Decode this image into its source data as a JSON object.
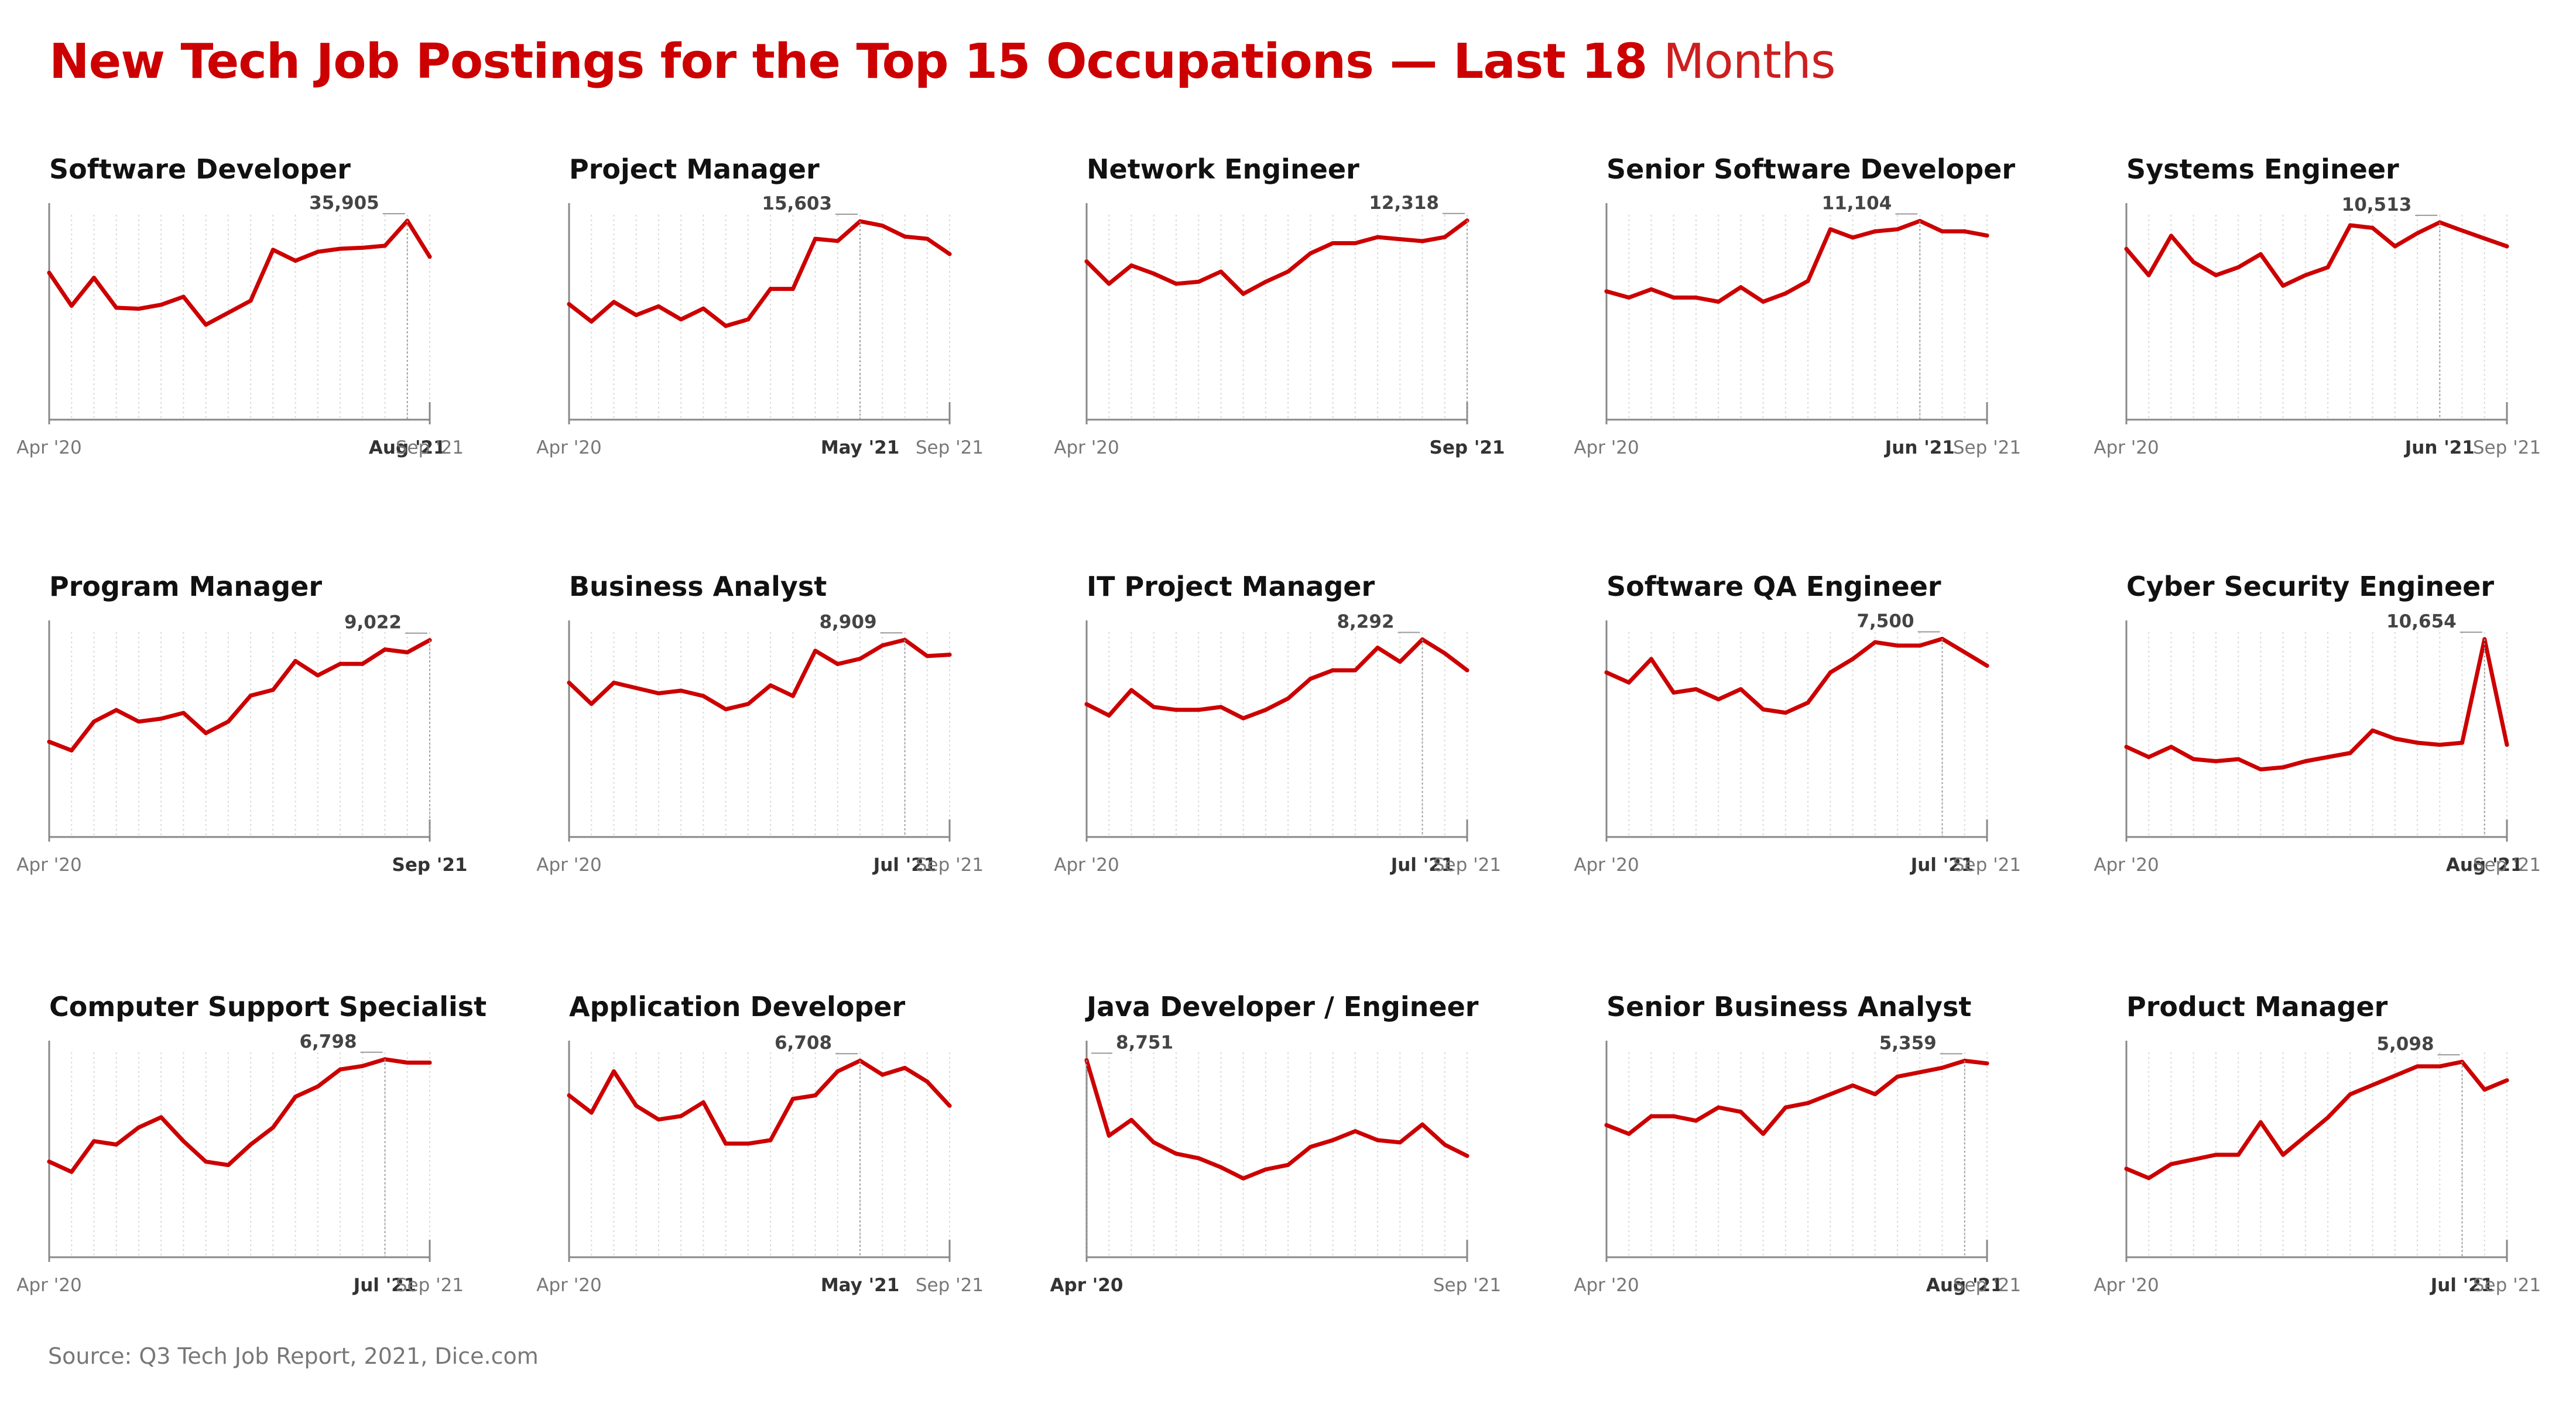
{
  "title": "New Tech Job Postings for the Top 15 Occupations — Last 18",
  "title_accent": "Months",
  "source": "Source: Q3 Tech Job Report, 2021, Dice.com",
  "colors": {
    "line": "#cc0000",
    "title": "#cc0000",
    "axis": "#888888",
    "grid": "#d9d9d9",
    "text": "#111111",
    "muted": "#777777"
  },
  "chart_data": [
    {
      "type": "line",
      "title": "Software Developer",
      "x": [
        "Apr '20",
        "May '20",
        "Jun '20",
        "Jul '20",
        "Aug '20",
        "Sep '20",
        "Oct '20",
        "Nov '20",
        "Dec '20",
        "Jan '21",
        "Feb '21",
        "Mar '21",
        "Apr '21",
        "May '21",
        "Jun '21",
        "Jul '21",
        "Aug '21",
        "Sep '21"
      ],
      "values": [
        30700,
        27400,
        30200,
        27200,
        27100,
        27500,
        28300,
        25500,
        26700,
        27900,
        33000,
        31900,
        32800,
        33100,
        33200,
        33400,
        35905,
        32300
      ],
      "ylim": [
        16000,
        36500
      ],
      "peak_label": "35,905",
      "peak_index": 16,
      "tick_labels": [
        "Apr '20",
        "Aug '21",
        "Sep '21"
      ]
    },
    {
      "type": "line",
      "title": "Project Manager",
      "x": [
        "Apr '20",
        "May '20",
        "Jun '20",
        "Jul '20",
        "Aug '20",
        "Sep '20",
        "Oct '20",
        "Nov '20",
        "Dec '20",
        "Jan '21",
        "Feb '21",
        "Mar '21",
        "Apr '21",
        "May '21",
        "Jun '21",
        "Jul '21",
        "Aug '21",
        "Sep '21"
      ],
      "values": [
        11800,
        11000,
        11900,
        11300,
        11700,
        11100,
        11600,
        10800,
        11100,
        12500,
        12500,
        14800,
        14700,
        15603,
        15400,
        14900,
        14800,
        14100
      ],
      "ylim": [
        6500,
        15900
      ],
      "peak_label": "15,603",
      "peak_index": 13,
      "tick_labels": [
        "Apr '20",
        "May '21",
        "Sep '21"
      ]
    },
    {
      "type": "line",
      "title": "Network Engineer",
      "x": [
        "Apr '20",
        "May '20",
        "Jun '20",
        "Jul '20",
        "Aug '20",
        "Sep '20",
        "Oct '20",
        "Nov '20",
        "Dec '20",
        "Jan '21",
        "Feb '21",
        "Mar '21",
        "Apr '21",
        "May '21",
        "Jun '21",
        "Jul '21",
        "Aug '21",
        "Sep '21"
      ],
      "values": [
        10300,
        9200,
        10100,
        9700,
        9200,
        9300,
        9800,
        8700,
        9300,
        9800,
        10700,
        11200,
        11200,
        11500,
        11400,
        11300,
        11500,
        12318
      ],
      "ylim": [
        2500,
        12600
      ],
      "peak_label": "12,318",
      "peak_index": 17,
      "tick_labels": [
        "Apr '20",
        "Sep '21"
      ]
    },
    {
      "type": "line",
      "title": "Senior Software Developer",
      "x": [
        "Apr '20",
        "May '20",
        "Jun '20",
        "Jul '20",
        "Aug '20",
        "Sep '20",
        "Oct '20",
        "Nov '20",
        "Dec '20",
        "Jan '21",
        "Feb '21",
        "Mar '21",
        "Apr '21",
        "May '21",
        "Jun '21",
        "Jul '21",
        "Aug '21",
        "Sep '21"
      ],
      "values": [
        7700,
        7400,
        7800,
        7400,
        7400,
        7200,
        7900,
        7200,
        7600,
        8200,
        10700,
        10300,
        10600,
        10700,
        11104,
        10600,
        10600,
        10400
      ],
      "ylim": [
        1500,
        11400
      ],
      "peak_label": "11,104",
      "peak_index": 14,
      "tick_labels": [
        "Apr '20",
        "Jun '21",
        "Sep '21"
      ]
    },
    {
      "type": "line",
      "title": "Systems Engineer",
      "x": [
        "Apr '20",
        "May '20",
        "Jun '20",
        "Jul '20",
        "Aug '20",
        "Sep '20",
        "Oct '20",
        "Nov '20",
        "Dec '20",
        "Jan '21",
        "Feb '21",
        "Mar '21",
        "Apr '21",
        "May '21",
        "Jun '21",
        "Jul '21",
        "Aug '21",
        "Sep '21"
      ],
      "values": [
        9500,
        8500,
        10000,
        9000,
        8500,
        8800,
        9300,
        8100,
        8500,
        8800,
        10400,
        10300,
        9600,
        10100,
        10513,
        10200,
        9900,
        9600
      ],
      "ylim": [
        3000,
        10800
      ],
      "peak_label": "10,513",
      "peak_index": 14,
      "tick_labels": [
        "Apr '20",
        "Jun '21",
        "Sep '21"
      ]
    },
    {
      "type": "line",
      "title": "Program Manager",
      "x": [
        "Apr '20",
        "May '20",
        "Jun '20",
        "Jul '20",
        "Aug '20",
        "Sep '20",
        "Oct '20",
        "Nov '20",
        "Dec '20",
        "Jan '21",
        "Feb '21",
        "Mar '21",
        "Apr '21",
        "May '21",
        "Jun '21",
        "Jul '21",
        "Aug '21",
        "Sep '21"
      ],
      "values": [
        5500,
        5200,
        6200,
        6600,
        6200,
        6300,
        6500,
        5800,
        6200,
        7100,
        7300,
        8300,
        7800,
        8200,
        8200,
        8700,
        8600,
        9022
      ],
      "ylim": [
        2200,
        9300
      ],
      "peak_label": "9,022",
      "peak_index": 17,
      "tick_labels": [
        "Apr '20",
        "Sep '21"
      ]
    },
    {
      "type": "line",
      "title": "Business Analyst",
      "x": [
        "Apr '20",
        "May '20",
        "Jun '20",
        "Jul '20",
        "Aug '20",
        "Sep '20",
        "Oct '20",
        "Nov '20",
        "Dec '20",
        "Jan '21",
        "Feb '21",
        "Mar '21",
        "Apr '21",
        "May '21",
        "Jun '21",
        "Jul '21",
        "Aug '21",
        "Sep '21"
      ],
      "values": [
        7300,
        6500,
        7300,
        7100,
        6900,
        7000,
        6800,
        6300,
        6500,
        7200,
        6800,
        8500,
        8000,
        8200,
        8700,
        8909,
        8300,
        8350
      ],
      "ylim": [
        1500,
        9200
      ],
      "peak_label": "8,909",
      "peak_index": 15,
      "tick_labels": [
        "Apr '20",
        "Jul '21",
        "Sep '21"
      ]
    },
    {
      "type": "line",
      "title": "IT Project Manager",
      "x": [
        "Apr '20",
        "May '20",
        "Jun '20",
        "Jul '20",
        "Aug '20",
        "Sep '20",
        "Oct '20",
        "Nov '20",
        "Dec '20",
        "Jan '21",
        "Feb '21",
        "Mar '21",
        "Apr '21",
        "May '21",
        "Jun '21",
        "Jul '21",
        "Aug '21",
        "Sep '21"
      ],
      "values": [
        6000,
        5600,
        6500,
        5900,
        5800,
        5800,
        5900,
        5500,
        5800,
        6200,
        6900,
        7200,
        7200,
        8000,
        7500,
        8292,
        7800,
        7200
      ],
      "ylim": [
        1300,
        8550
      ],
      "peak_label": "8,292",
      "peak_index": 15,
      "tick_labels": [
        "Apr '20",
        "Jul '21",
        "Sep '21"
      ]
    },
    {
      "type": "line",
      "title": "Software QA Engineer",
      "x": [
        "Apr '20",
        "May '20",
        "Jun '20",
        "Jul '20",
        "Aug '20",
        "Sep '20",
        "Oct '20",
        "Nov '20",
        "Dec '20",
        "Jan '21",
        "Feb '21",
        "Mar '21",
        "Apr '21",
        "May '21",
        "Jun '21",
        "Jul '21",
        "Aug '21",
        "Sep '21"
      ],
      "values": [
        6500,
        6200,
        6900,
        5900,
        6000,
        5700,
        6000,
        5400,
        5300,
        5600,
        6500,
        6900,
        7400,
        7300,
        7300,
        7500,
        7100,
        6700
      ],
      "ylim": [
        1600,
        7700
      ],
      "peak_label": "7,500",
      "peak_index": 15,
      "tick_labels": [
        "Apr '20",
        "Jul '21",
        "Sep '21"
      ]
    },
    {
      "type": "line",
      "title": "Cyber Security Engineer",
      "x": [
        "Apr '20",
        "May '20",
        "Jun '20",
        "Jul '20",
        "Aug '20",
        "Sep '20",
        "Oct '20",
        "Nov '20",
        "Dec '20",
        "Jan '21",
        "Feb '21",
        "Mar '21",
        "Apr '21",
        "May '21",
        "Jun '21",
        "Jul '21",
        "Aug '21",
        "Sep '21"
      ],
      "values": [
        5400,
        4900,
        5400,
        4800,
        4700,
        4800,
        4300,
        4400,
        4700,
        4900,
        5100,
        6200,
        5800,
        5600,
        5500,
        5600,
        10654,
        5500
      ],
      "ylim": [
        1000,
        11000
      ],
      "peak_label": "10,654",
      "peak_index": 16,
      "tick_labels": [
        "Apr '20",
        "Aug '21",
        "Sep '21"
      ]
    },
    {
      "type": "line",
      "title": "Computer Support Specialist",
      "x": [
        "Apr '20",
        "May '20",
        "Jun '20",
        "Jul '20",
        "Aug '20",
        "Sep '20",
        "Oct '20",
        "Nov '20",
        "Dec '20",
        "Jan '21",
        "Feb '21",
        "Mar '21",
        "Apr '21",
        "May '21",
        "Jun '21",
        "Jul '21",
        "Aug '21",
        "Sep '21"
      ],
      "values": [
        3800,
        3500,
        4400,
        4300,
        4800,
        5100,
        4400,
        3800,
        3700,
        4300,
        4800,
        5700,
        6000,
        6500,
        6600,
        6798,
        6700,
        6700
      ],
      "ylim": [
        1000,
        7000
      ],
      "peak_label": "6,798",
      "peak_index": 15,
      "tick_labels": [
        "Apr '20",
        "Jul '21",
        "Sep '21"
      ]
    },
    {
      "type": "line",
      "title": "Application Developer",
      "x": [
        "Apr '20",
        "May '20",
        "Jun '20",
        "Jul '20",
        "Aug '20",
        "Sep '20",
        "Oct '20",
        "Nov '20",
        "Dec '20",
        "Jan '21",
        "Feb '21",
        "Mar '21",
        "Apr '21",
        "May '21",
        "Jun '21",
        "Jul '21",
        "Aug '21",
        "Sep '21"
      ],
      "values": [
        5700,
        5200,
        6400,
        5400,
        5000,
        5100,
        5500,
        4300,
        4300,
        4400,
        5600,
        5700,
        6400,
        6708,
        6300,
        6500,
        6100,
        5400
      ],
      "ylim": [
        1000,
        6950
      ],
      "peak_label": "6,708",
      "peak_index": 13,
      "tick_labels": [
        "Apr '20",
        "May '21",
        "Sep '21"
      ]
    },
    {
      "type": "line",
      "title": "Java Developer / Engineer",
      "x": [
        "Apr '20",
        "May '20",
        "Jun '20",
        "Jul '20",
        "Aug '20",
        "Sep '20",
        "Oct '20",
        "Nov '20",
        "Dec '20",
        "Jan '21",
        "Feb '21",
        "Mar '21",
        "Apr '21",
        "May '21",
        "Jun '21",
        "Jul '21",
        "Aug '21",
        "Sep '21"
      ],
      "values": [
        8751,
        5400,
        6100,
        5100,
        4600,
        4400,
        4000,
        3500,
        3900,
        4100,
        4900,
        5200,
        5600,
        5200,
        5100,
        5900,
        5000,
        4500
      ],
      "ylim": [
        0,
        9100
      ],
      "peak_label": "8,751",
      "peak_index": 0,
      "tick_labels": [
        "Apr '20",
        "Sep '21"
      ]
    },
    {
      "type": "line",
      "title": "Senior Business Analyst",
      "x": [
        "Apr '20",
        "May '20",
        "Jun '20",
        "Jul '20",
        "Aug '20",
        "Sep '20",
        "Oct '20",
        "Nov '20",
        "Dec '20",
        "Jan '21",
        "Feb '21",
        "Mar '21",
        "Apr '21",
        "May '21",
        "Jun '21",
        "Jul '21",
        "Aug '21",
        "Sep '21"
      ],
      "values": [
        3900,
        3700,
        4100,
        4100,
        4000,
        4300,
        4200,
        3700,
        4300,
        4400,
        4600,
        4800,
        4600,
        5000,
        5100,
        5200,
        5359,
        5300
      ],
      "ylim": [
        900,
        5550
      ],
      "peak_label": "5,359",
      "peak_index": 16,
      "tick_labels": [
        "Apr '20",
        "Aug '21",
        "Sep '21"
      ]
    },
    {
      "type": "line",
      "title": "Product Manager",
      "x": [
        "Apr '20",
        "May '20",
        "Jun '20",
        "Jul '20",
        "Aug '20",
        "Sep '20",
        "Oct '20",
        "Nov '20",
        "Dec '20",
        "Jan '21",
        "Feb '21",
        "Mar '21",
        "Apr '21",
        "May '21",
        "Jun '21",
        "Jul '21",
        "Aug '21",
        "Sep '21"
      ],
      "values": [
        2800,
        2600,
        2900,
        3000,
        3100,
        3100,
        3800,
        3100,
        3500,
        3900,
        4400,
        4600,
        4800,
        5000,
        5000,
        5098,
        4500,
        4700
      ],
      "ylim": [
        900,
        5300
      ],
      "peak_label": "5,098",
      "peak_index": 15,
      "tick_labels": [
        "Apr '20",
        "Jul '21",
        "Sep '21"
      ]
    }
  ]
}
